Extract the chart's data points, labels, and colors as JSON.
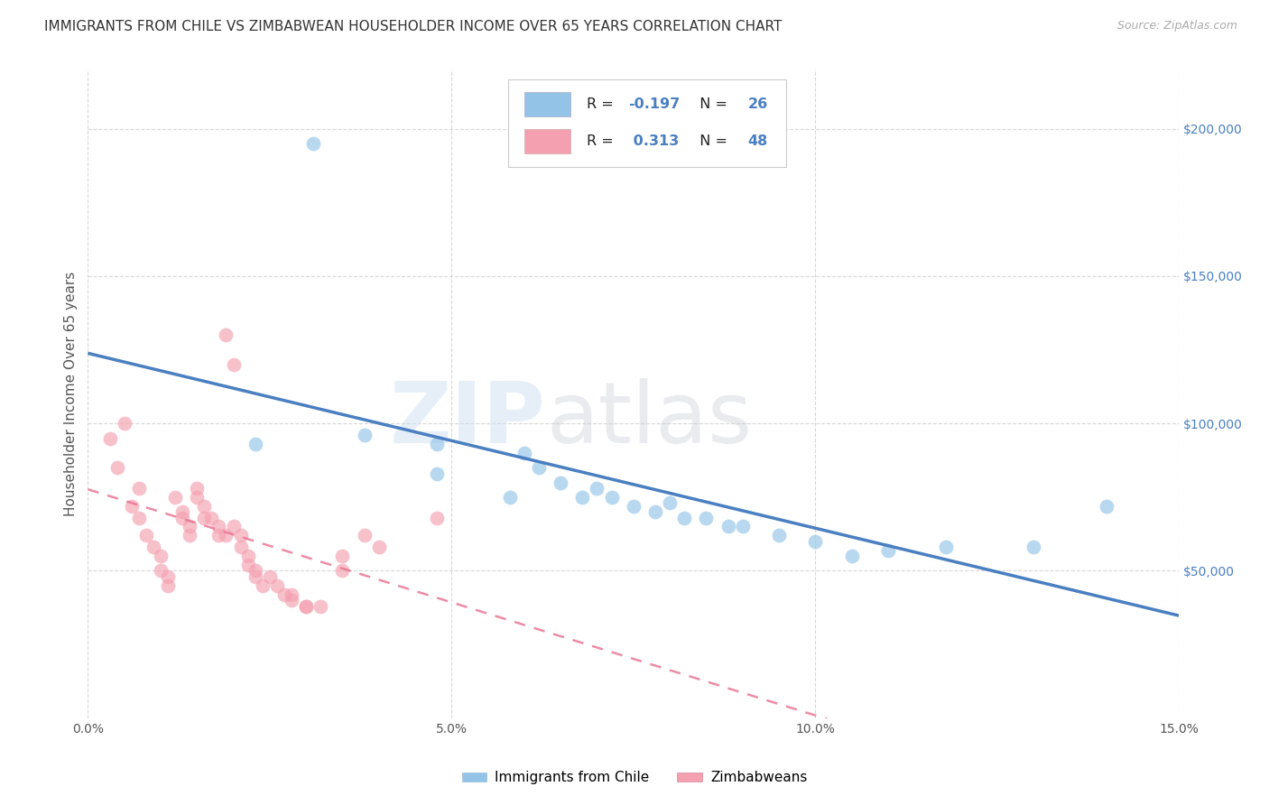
{
  "title": "IMMIGRANTS FROM CHILE VS ZIMBABWEAN HOUSEHOLDER INCOME OVER 65 YEARS CORRELATION CHART",
  "source": "Source: ZipAtlas.com",
  "ylabel": "Householder Income Over 65 years",
  "xlim": [
    0.0,
    0.15
  ],
  "ylim": [
    0,
    220000
  ],
  "yticks": [
    50000,
    100000,
    150000,
    200000
  ],
  "ytick_labels": [
    "$50,000",
    "$100,000",
    "$150,000",
    "$200,000"
  ],
  "xticks": [
    0.0,
    0.05,
    0.1,
    0.15
  ],
  "xtick_labels": [
    "0.0%",
    "5.0%",
    "10.0%",
    "15.0%"
  ],
  "legend_bottom": [
    "Immigrants from Chile",
    "Zimbabweans"
  ],
  "chile_color": "#93c4e8",
  "zimbabwe_color": "#f4a0b0",
  "chile_line_color": "#4a7fc1",
  "zimbabwe_line_color": "#e87090",
  "chile_scatter": [
    [
      0.031,
      195000
    ],
    [
      0.023,
      93000
    ],
    [
      0.038,
      96000
    ],
    [
      0.048,
      83000
    ],
    [
      0.048,
      93000
    ],
    [
      0.058,
      75000
    ],
    [
      0.06,
      90000
    ],
    [
      0.062,
      85000
    ],
    [
      0.065,
      80000
    ],
    [
      0.068,
      75000
    ],
    [
      0.07,
      78000
    ],
    [
      0.072,
      75000
    ],
    [
      0.075,
      72000
    ],
    [
      0.078,
      70000
    ],
    [
      0.08,
      73000
    ],
    [
      0.082,
      68000
    ],
    [
      0.085,
      68000
    ],
    [
      0.088,
      65000
    ],
    [
      0.09,
      65000
    ],
    [
      0.095,
      62000
    ],
    [
      0.1,
      60000
    ],
    [
      0.105,
      55000
    ],
    [
      0.11,
      57000
    ],
    [
      0.118,
      58000
    ],
    [
      0.13,
      58000
    ],
    [
      0.14,
      72000
    ]
  ],
  "zimbabwe_scatter": [
    [
      0.003,
      95000
    ],
    [
      0.004,
      85000
    ],
    [
      0.005,
      100000
    ],
    [
      0.006,
      72000
    ],
    [
      0.007,
      78000
    ],
    [
      0.007,
      68000
    ],
    [
      0.008,
      62000
    ],
    [
      0.009,
      58000
    ],
    [
      0.01,
      55000
    ],
    [
      0.01,
      50000
    ],
    [
      0.011,
      48000
    ],
    [
      0.011,
      45000
    ],
    [
      0.012,
      75000
    ],
    [
      0.013,
      70000
    ],
    [
      0.013,
      68000
    ],
    [
      0.014,
      65000
    ],
    [
      0.014,
      62000
    ],
    [
      0.015,
      78000
    ],
    [
      0.015,
      75000
    ],
    [
      0.016,
      72000
    ],
    [
      0.016,
      68000
    ],
    [
      0.017,
      68000
    ],
    [
      0.018,
      65000
    ],
    [
      0.018,
      62000
    ],
    [
      0.019,
      62000
    ],
    [
      0.019,
      130000
    ],
    [
      0.02,
      120000
    ],
    [
      0.02,
      65000
    ],
    [
      0.021,
      62000
    ],
    [
      0.021,
      58000
    ],
    [
      0.022,
      55000
    ],
    [
      0.022,
      52000
    ],
    [
      0.023,
      50000
    ],
    [
      0.023,
      48000
    ],
    [
      0.024,
      45000
    ],
    [
      0.025,
      48000
    ],
    [
      0.026,
      45000
    ],
    [
      0.027,
      42000
    ],
    [
      0.028,
      42000
    ],
    [
      0.028,
      40000
    ],
    [
      0.03,
      38000
    ],
    [
      0.03,
      38000
    ],
    [
      0.032,
      38000
    ],
    [
      0.035,
      55000
    ],
    [
      0.035,
      50000
    ],
    [
      0.038,
      62000
    ],
    [
      0.04,
      58000
    ],
    [
      0.048,
      68000
    ]
  ],
  "background_color": "#ffffff",
  "grid_color": "#d8d8d8",
  "title_fontsize": 11,
  "source_fontsize": 9,
  "axis_label_fontsize": 11,
  "tick_fontsize": 10,
  "scatter_size": 130,
  "scatter_alpha": 0.65,
  "chile_R": "-0.197",
  "chile_N": "26",
  "zimbabwe_R": "0.313",
  "zimbabwe_N": "48"
}
